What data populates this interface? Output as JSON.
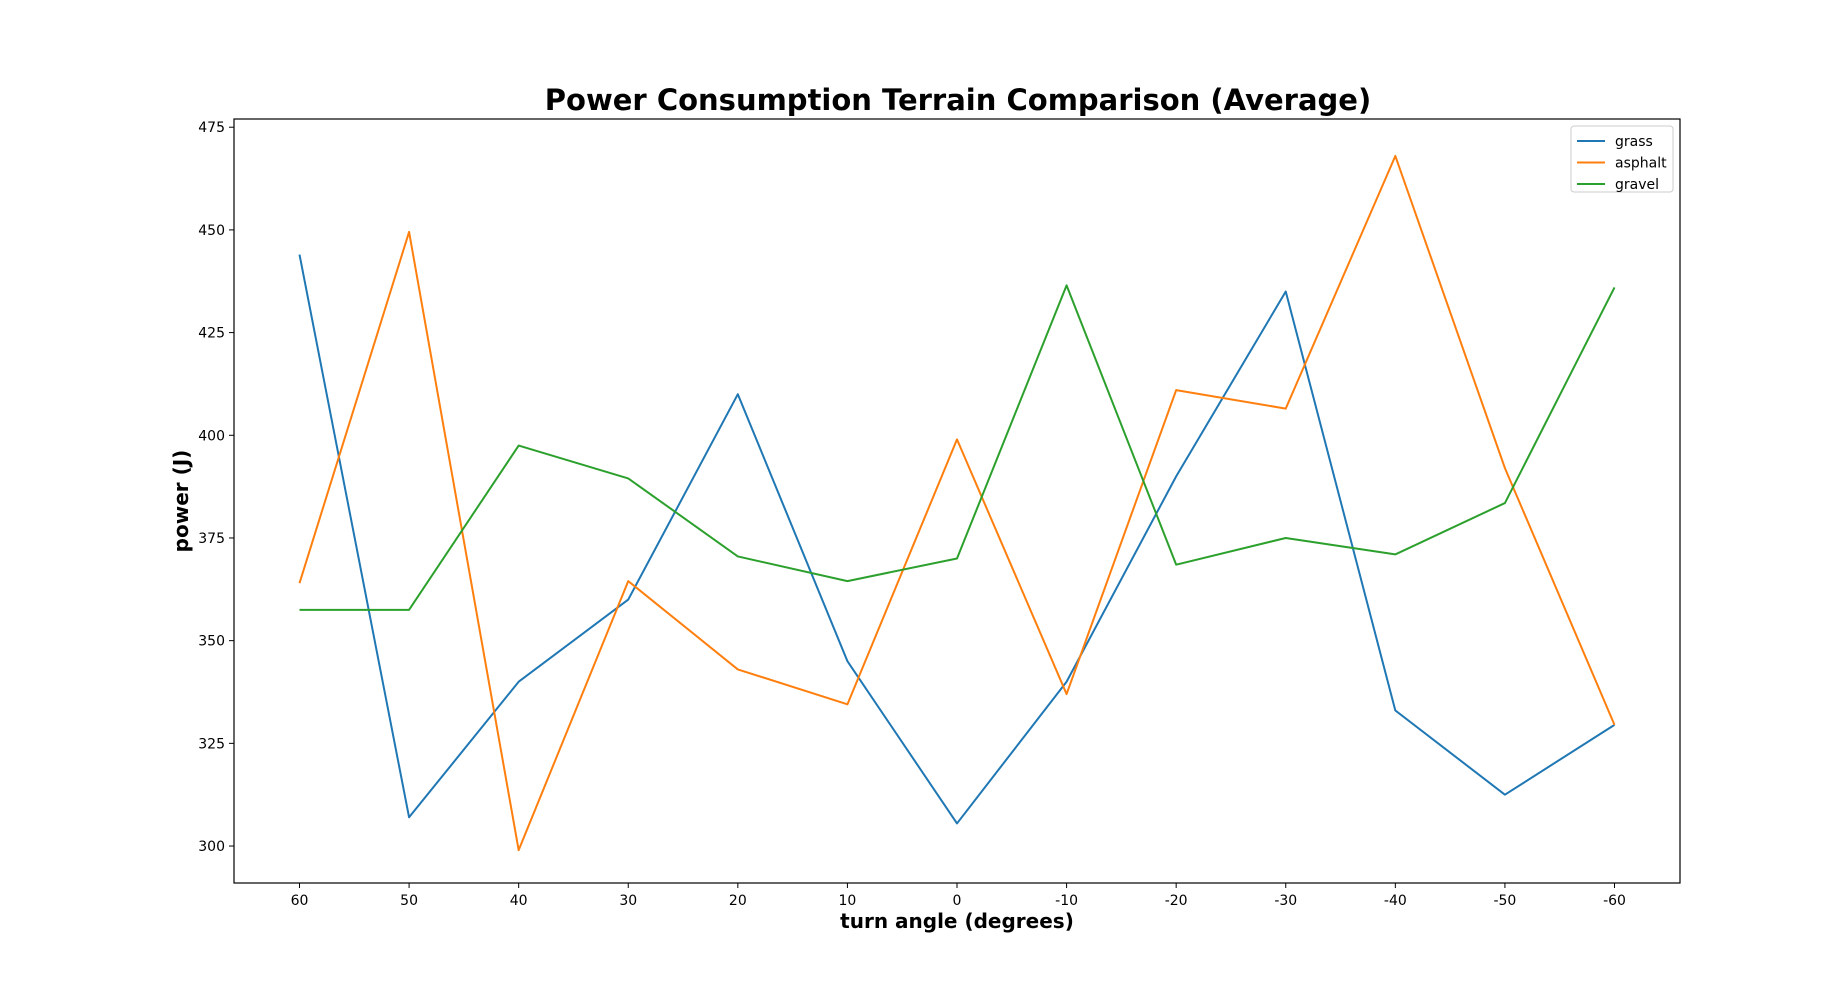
{
  "chart_data": {
    "type": "line",
    "title": "Power Consumption Terrain Comparison (Average)",
    "xlabel": "turn angle (degrees)",
    "ylabel": "power (J)",
    "categories": [
      "60",
      "50",
      "40",
      "30",
      "20",
      "10",
      "0",
      "-10",
      "-20",
      "-30",
      "-40",
      "-50",
      "-60"
    ],
    "ylim": [
      291,
      477
    ],
    "yticks": [
      300,
      325,
      350,
      375,
      400,
      425,
      450,
      475
    ],
    "grid": false,
    "legend_position": "top-right",
    "series": [
      {
        "name": "grass",
        "color": "#1f77b4",
        "values": [
          444,
          307,
          340,
          360,
          410,
          345,
          305.5,
          340,
          390,
          435,
          333,
          312.5,
          329.5
        ]
      },
      {
        "name": "asphalt",
        "color": "#ff7f0e",
        "values": [
          364,
          449.5,
          299,
          364.5,
          343,
          334.5,
          399,
          337,
          411,
          406.5,
          468,
          392,
          329.5
        ]
      },
      {
        "name": "gravel",
        "color": "#2ca02c",
        "values": [
          357.5,
          357.5,
          397.5,
          389.5,
          370.5,
          364.5,
          370,
          436.5,
          368.5,
          375,
          371,
          383.5,
          436
        ]
      }
    ]
  }
}
